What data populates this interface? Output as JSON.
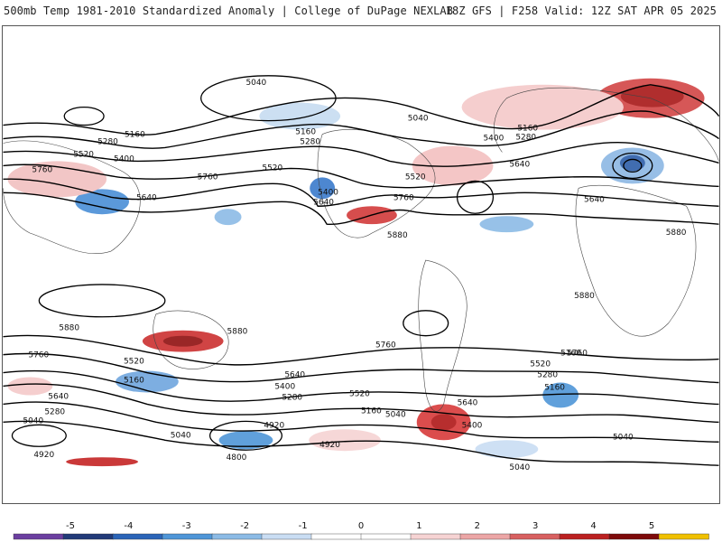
{
  "header": {
    "left": "500mb Temp 1981-2010 Standardized Anomaly | College of DuPage NEXLAB",
    "right": "18Z GFS | F258 Valid: 12Z SAT APR 05 2025"
  },
  "colorbar": {
    "ticks": [
      "-5",
      "-4",
      "-3",
      "-2",
      "-1",
      "0",
      "1",
      "2",
      "3",
      "4",
      "5"
    ],
    "colors": [
      "#6b3fa0",
      "#213a78",
      "#2a64b8",
      "#4f96d8",
      "#8cbbe6",
      "#c9ddf3",
      "#ffffff",
      "#ffffff",
      "#f6d3d3",
      "#eca6a6",
      "#d86060",
      "#bb2020",
      "#7e0a0a",
      "#f0c000"
    ]
  },
  "contour_labels": [
    "5040",
    "5160",
    "5280",
    "5520",
    "5400",
    "5760",
    "5640",
    "5160",
    "5280",
    "5040",
    "5520",
    "5400",
    "5640",
    "5760",
    "5880",
    "5400",
    "5280",
    "5160",
    "5640",
    "5520",
    "5760",
    "5640",
    "5880",
    "5880",
    "5880",
    "5880",
    "5760",
    "5760",
    "5520",
    "5160",
    "5640",
    "5280",
    "5040",
    "4920",
    "5640",
    "5400",
    "5280",
    "5160",
    "4920",
    "4800",
    "5040",
    "4920",
    "5760",
    "5520",
    "5640",
    "5400",
    "5040",
    "5760",
    "5520",
    "5280",
    "5160",
    "5040",
    "5040"
  ]
}
